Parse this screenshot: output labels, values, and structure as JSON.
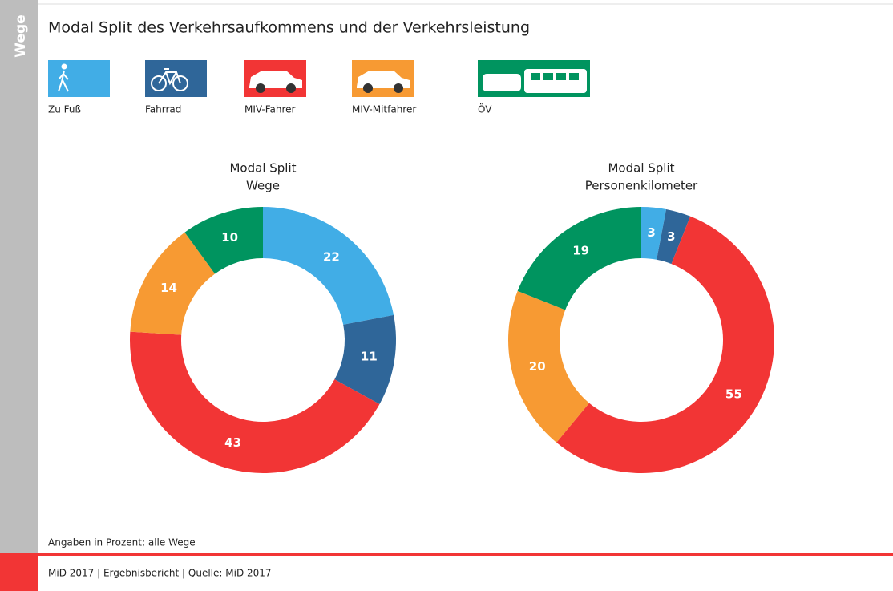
{
  "sidebar": "Wege",
  "title": "Modal Split des Verkehrsaufkommens und der Verkehrsleistung",
  "legend": {
    "names": [
      "Zu Fuß",
      "Fahrrad",
      "MIV-Fahrer",
      "MIV-Mitfahrer",
      "ÖV"
    ],
    "colors": [
      "#41ade6",
      "#2f6699",
      "#f23535",
      "#f79a33",
      "#00945f"
    ]
  },
  "chart_data": [
    {
      "type": "pie",
      "donut": true,
      "title": [
        "Modal Split",
        "Wege"
      ],
      "values": [
        22,
        11,
        43,
        14,
        10
      ]
    },
    {
      "type": "pie",
      "donut": true,
      "title": [
        "Modal Split",
        "Personenkilometer"
      ],
      "values": [
        3,
        3,
        55,
        20,
        19
      ]
    }
  ],
  "note": "Angaben in Prozent; alle Wege",
  "footer": "MiD 2017 | Ergebnisbericht | Quelle: MiD 2017"
}
